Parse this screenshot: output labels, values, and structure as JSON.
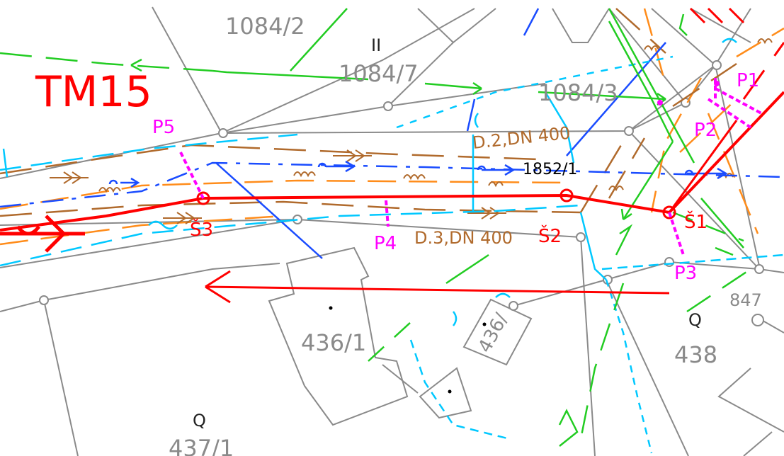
{
  "map": {
    "sheet_label": "TM15",
    "parcels": [
      {
        "id": "p1084_2",
        "label": "1084/2"
      },
      {
        "id": "p1084_7",
        "label": "1084/7"
      },
      {
        "id": "p1084_3",
        "label": "1084/3"
      },
      {
        "id": "p436_1",
        "label": "436/1"
      },
      {
        "id": "p436_2",
        "label": "436/"
      },
      {
        "id": "p438",
        "label": "438"
      },
      {
        "id": "p437_1",
        "label": "437/1"
      },
      {
        "id": "p847",
        "label": "847"
      }
    ],
    "land_symbols": {
      "roman": "II",
      "q1": "Q",
      "q2": "Q"
    },
    "road_parcel": "1852/1",
    "pipes": {
      "d2": "D.2,DN 400",
      "d3": "D.3,DN 400"
    },
    "manholes": {
      "s1": "Š1",
      "s2": "Š2",
      "s3": "Š3"
    },
    "points": {
      "p1": "P1",
      "p2": "P2",
      "p3": "P3",
      "p4": "P4",
      "p5": "P5"
    },
    "colors": {
      "parcel_line": "#8a8a8a",
      "sewer_main": "#ff0000",
      "probe": "#ff00ff",
      "brown_network": "#b06a2c",
      "orange_network": "#ff8c1a",
      "blue_network": "#1a4cff",
      "cyan_network": "#00c8ff",
      "green_network": "#22cc22"
    }
  }
}
